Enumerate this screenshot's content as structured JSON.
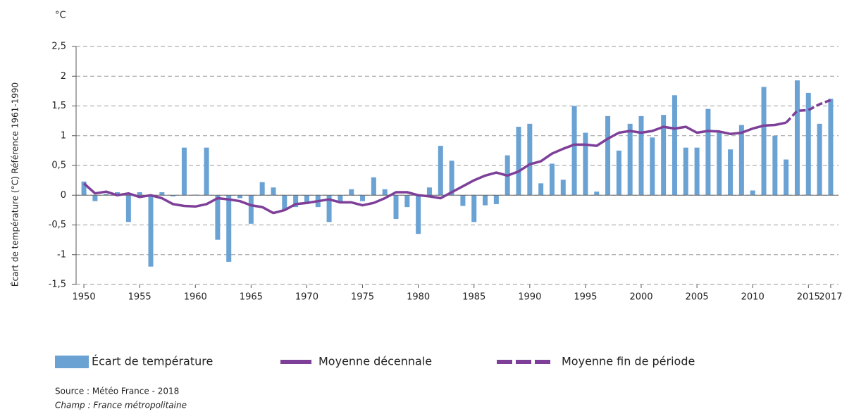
{
  "chart_data": {
    "type": "bar",
    "unit_label": "°C",
    "ylabel": "Écart de température (°C) Référence 1961-1990",
    "source": "Source : Météo France - 2018",
    "note": "Champ : France métropolitaine",
    "x": [
      1950,
      1951,
      1952,
      1953,
      1954,
      1955,
      1956,
      1957,
      1958,
      1959,
      1960,
      1961,
      1962,
      1963,
      1964,
      1965,
      1966,
      1967,
      1968,
      1969,
      1970,
      1971,
      1972,
      1973,
      1974,
      1975,
      1976,
      1977,
      1978,
      1979,
      1980,
      1981,
      1982,
      1983,
      1984,
      1985,
      1986,
      1987,
      1988,
      1989,
      1990,
      1991,
      1992,
      1993,
      1994,
      1995,
      1996,
      1997,
      1998,
      1999,
      2000,
      2001,
      2002,
      2003,
      2004,
      2005,
      2006,
      2007,
      2008,
      2009,
      2010,
      2011,
      2012,
      2013,
      2014,
      2015,
      2016,
      2017
    ],
    "series": [
      {
        "name": "Écart de température",
        "type": "bar",
        "color": "#6aa2d4",
        "values": [
          0.23,
          -0.1,
          0.02,
          0.05,
          -0.45,
          0.05,
          -1.2,
          0.05,
          -0.02,
          0.8,
          0.01,
          0.8,
          -0.75,
          -1.12,
          -0.05,
          -0.48,
          0.22,
          0.13,
          -0.25,
          -0.2,
          -0.15,
          -0.2,
          -0.45,
          -0.12,
          0.1,
          -0.1,
          0.3,
          0.1,
          -0.4,
          -0.2,
          -0.65,
          0.13,
          0.83,
          0.58,
          -0.18,
          -0.45,
          -0.17,
          -0.15,
          0.67,
          1.15,
          1.2,
          0.2,
          0.53,
          0.26,
          1.5,
          1.05,
          0.06,
          1.33,
          0.75,
          1.2,
          1.33,
          0.97,
          1.35,
          1.68,
          0.8,
          0.8,
          1.45,
          1.05,
          0.77,
          1.18,
          0.08,
          1.82,
          1.0,
          0.6,
          1.93,
          1.72,
          1.2,
          1.62
        ]
      },
      {
        "name": "Moyenne décennale",
        "type": "line",
        "color": "#7d3f98",
        "dashed": false,
        "values": [
          0.2,
          0.03,
          0.06,
          0.0,
          0.03,
          -0.03,
          0.0,
          -0.05,
          -0.15,
          -0.18,
          -0.19,
          -0.15,
          -0.05,
          -0.07,
          -0.1,
          -0.17,
          -0.2,
          -0.3,
          -0.25,
          -0.15,
          -0.13,
          -0.1,
          -0.07,
          -0.12,
          -0.12,
          -0.17,
          -0.13,
          -0.05,
          0.05,
          0.05,
          0.0,
          -0.02,
          -0.05,
          0.05,
          0.15,
          0.25,
          0.33,
          0.38,
          0.33,
          0.4,
          0.52,
          0.57,
          0.7,
          0.78,
          0.85,
          0.85,
          0.83,
          0.95,
          1.05,
          1.08,
          1.05,
          1.08,
          1.15,
          1.12,
          1.15,
          1.05,
          1.08,
          1.07,
          1.03,
          1.05,
          1.12,
          1.17,
          1.18,
          1.22,
          null,
          null,
          null,
          null
        ]
      },
      {
        "name": "Moyenne fin de période",
        "type": "line",
        "color": "#7d3f98",
        "dashed": true,
        "values": [
          null,
          null,
          null,
          null,
          null,
          null,
          null,
          null,
          null,
          null,
          null,
          null,
          null,
          null,
          null,
          null,
          null,
          null,
          null,
          null,
          null,
          null,
          null,
          null,
          null,
          null,
          null,
          null,
          null,
          null,
          null,
          null,
          null,
          null,
          null,
          null,
          null,
          null,
          null,
          null,
          null,
          null,
          null,
          null,
          null,
          null,
          null,
          null,
          null,
          null,
          null,
          null,
          null,
          null,
          null,
          null,
          null,
          null,
          null,
          null,
          null,
          null,
          null,
          1.22,
          1.42,
          1.43,
          1.53,
          1.6
        ]
      }
    ],
    "xlim": [
      1949.3,
      2017.7
    ],
    "xticks": [
      1950,
      1955,
      1960,
      1965,
      1970,
      1975,
      1980,
      1985,
      1990,
      1995,
      2000,
      2005,
      2010,
      2015,
      2017
    ],
    "ylim": [
      -1.5,
      2.5
    ],
    "yticks": [
      {
        "value": 2.5,
        "label": "2,5"
      },
      2,
      {
        "value": 1.5,
        "label": "1,5"
      },
      1,
      {
        "value": 0.5,
        "label": "0,5"
      },
      0,
      {
        "value": -0.5,
        "label": "-0,5"
      },
      -1,
      {
        "value": -1.5,
        "label": "-1,5"
      }
    ],
    "grid": true
  }
}
